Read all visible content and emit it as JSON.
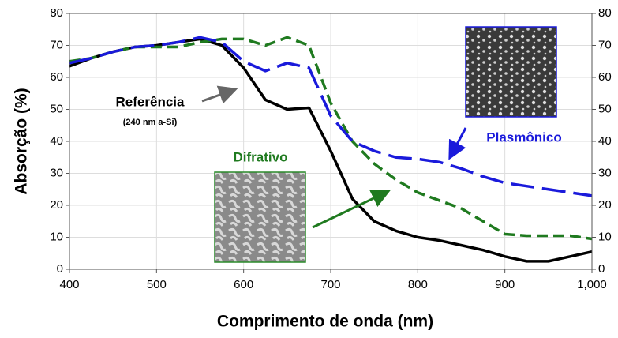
{
  "chart_data": {
    "type": "line",
    "x_label": "Comprimento de onda (nm)",
    "y_label": "Absorção (%)",
    "x": [
      400,
      425,
      450,
      475,
      500,
      525,
      550,
      575,
      600,
      625,
      650,
      675,
      700,
      725,
      750,
      775,
      800,
      825,
      850,
      875,
      900,
      925,
      950,
      975,
      1000
    ],
    "series": [
      {
        "name": "Referência",
        "color": "#000000",
        "dash": "solid",
        "values": [
          63.5,
          66,
          68,
          69.5,
          70,
          71,
          72,
          70,
          63,
          53,
          50,
          50.5,
          37,
          22,
          15,
          12,
          10,
          9,
          7.5,
          6,
          4,
          2.5,
          2.5,
          4,
          5.5
        ]
      },
      {
        "name": "Difrativo",
        "color": "#1f7a1f",
        "dash": "dashed",
        "values": [
          65,
          66,
          68,
          69.5,
          69.5,
          69.5,
          71,
          72,
          72,
          70,
          72.5,
          70,
          52,
          40,
          33,
          28,
          24,
          21.5,
          19,
          15,
          11,
          10.5,
          10.5,
          10.5,
          9.5
        ]
      },
      {
        "name": "Plasmônico",
        "color": "#1a1adb",
        "dash": "longdash",
        "values": [
          64.5,
          66,
          68,
          69.5,
          70,
          71,
          72.5,
          71,
          65,
          62,
          64.5,
          63,
          48,
          40,
          37,
          35,
          34.5,
          33.5,
          31.5,
          29,
          27,
          26,
          25,
          24,
          23
        ]
      }
    ],
    "annotations": [
      "(240 nm a-Si)"
    ],
    "xlim": [
      400,
      1000
    ],
    "xticks": [
      400,
      500,
      600,
      700,
      800,
      900,
      {
        "value": 1000,
        "label": "1,000"
      }
    ],
    "ylim": [
      0,
      80
    ],
    "yticks": [
      0,
      10,
      20,
      30,
      40,
      50,
      60,
      70,
      80
    ],
    "y2lim": [
      0,
      80
    ],
    "y2ticks": [
      0,
      10,
      20,
      30,
      40,
      50,
      60,
      70,
      80
    ],
    "grid": true
  }
}
